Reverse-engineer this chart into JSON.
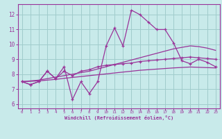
{
  "bg_color": "#c8eaea",
  "grid_color": "#a0cccc",
  "line_color": "#993399",
  "xlabel": "Windchill (Refroidissement éolien,°C)",
  "xlabel_color": "#993399",
  "tick_color": "#993399",
  "ylim": [
    5.7,
    12.7
  ],
  "xlim": [
    -0.5,
    23.5
  ],
  "yticks": [
    6,
    7,
    8,
    9,
    10,
    11,
    12
  ],
  "xticks": [
    0,
    1,
    2,
    3,
    4,
    5,
    6,
    7,
    8,
    9,
    10,
    11,
    12,
    13,
    14,
    15,
    16,
    17,
    18,
    19,
    20,
    21,
    22,
    23
  ],
  "series1_x": [
    0,
    1,
    2,
    3,
    4,
    5,
    6,
    7,
    8,
    9,
    10,
    11,
    12,
    13,
    14,
    15,
    16,
    17,
    18,
    19,
    20,
    21,
    22,
    23
  ],
  "series1_y": [
    7.5,
    7.3,
    7.5,
    8.2,
    7.7,
    8.5,
    6.3,
    7.5,
    6.7,
    7.5,
    9.9,
    11.1,
    9.9,
    12.3,
    12.0,
    11.5,
    11.0,
    11.0,
    10.1,
    8.9,
    8.7,
    9.0,
    8.8,
    8.5
  ],
  "series2_x": [
    0,
    1,
    2,
    3,
    4,
    5,
    6,
    7,
    8,
    9,
    10,
    11,
    12,
    13,
    14,
    15,
    16,
    17,
    18,
    19,
    20,
    21,
    22,
    23
  ],
  "series2_y": [
    7.5,
    7.3,
    7.5,
    8.2,
    7.7,
    8.2,
    7.9,
    8.2,
    8.3,
    8.5,
    8.6,
    8.65,
    8.7,
    8.75,
    8.85,
    8.9,
    8.95,
    9.0,
    9.05,
    9.1,
    9.15,
    9.1,
    9.05,
    9.0
  ],
  "smooth1_x": [
    0,
    1,
    2,
    3,
    4,
    5,
    6,
    7,
    8,
    9,
    10,
    11,
    12,
    13,
    14,
    15,
    16,
    17,
    18,
    19,
    20,
    21,
    22,
    23
  ],
  "smooth1_y": [
    7.5,
    7.55,
    7.6,
    7.7,
    7.8,
    7.9,
    8.0,
    8.1,
    8.2,
    8.35,
    8.5,
    8.65,
    8.8,
    8.95,
    9.1,
    9.25,
    9.4,
    9.55,
    9.7,
    9.8,
    9.9,
    9.85,
    9.75,
    9.6
  ],
  "smooth2_x": [
    0,
    1,
    2,
    3,
    4,
    5,
    6,
    7,
    8,
    9,
    10,
    11,
    12,
    13,
    14,
    15,
    16,
    17,
    18,
    19,
    20,
    21,
    22,
    23
  ],
  "smooth2_y": [
    7.5,
    7.52,
    7.55,
    7.6,
    7.65,
    7.72,
    7.78,
    7.84,
    7.9,
    7.96,
    8.02,
    8.08,
    8.14,
    8.2,
    8.26,
    8.3,
    8.34,
    8.38,
    8.42,
    8.45,
    8.48,
    8.46,
    8.44,
    8.42
  ]
}
